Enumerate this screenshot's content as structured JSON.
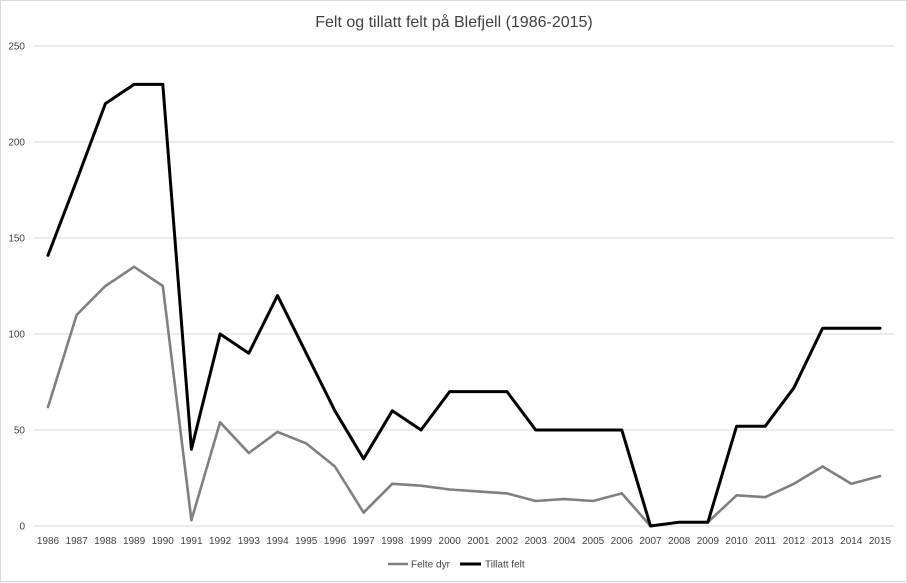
{
  "chart_data": {
    "type": "line",
    "title": "Felt og tillatt  felt på Blefjell (1986-2015)",
    "xlabel": "",
    "ylabel": "",
    "categories": [
      "1986",
      "1987",
      "1988",
      "1989",
      "1990",
      "1991",
      "1992",
      "1993",
      "1994",
      "1995",
      "1996",
      "1997",
      "1998",
      "1999",
      "2000",
      "2001",
      "2002",
      "2003",
      "2004",
      "2005",
      "2006",
      "2007",
      "2008",
      "2009",
      "2010",
      "2011",
      "2012",
      "2013",
      "2014",
      "2015"
    ],
    "ylim": [
      0,
      250
    ],
    "yticks": [
      0,
      50,
      100,
      150,
      200,
      250
    ],
    "grid": "horizontal",
    "legend_position": "bottom",
    "series": [
      {
        "name": "Felte dyr",
        "color": "#808080",
        "values": [
          62,
          110,
          125,
          135,
          125,
          3,
          54,
          38,
          49,
          43,
          31,
          7,
          22,
          21,
          19,
          18,
          17,
          13,
          14,
          13,
          17,
          0,
          2,
          2,
          16,
          15,
          22,
          31,
          22,
          26
        ]
      },
      {
        "name": "Tillatt felt",
        "color": "#000000",
        "values": [
          141,
          180,
          220,
          230,
          230,
          40,
          100,
          90,
          120,
          90,
          60,
          35,
          60,
          50,
          70,
          70,
          70,
          50,
          50,
          50,
          50,
          0,
          2,
          2,
          52,
          52,
          72,
          103,
          103,
          103
        ]
      }
    ]
  }
}
